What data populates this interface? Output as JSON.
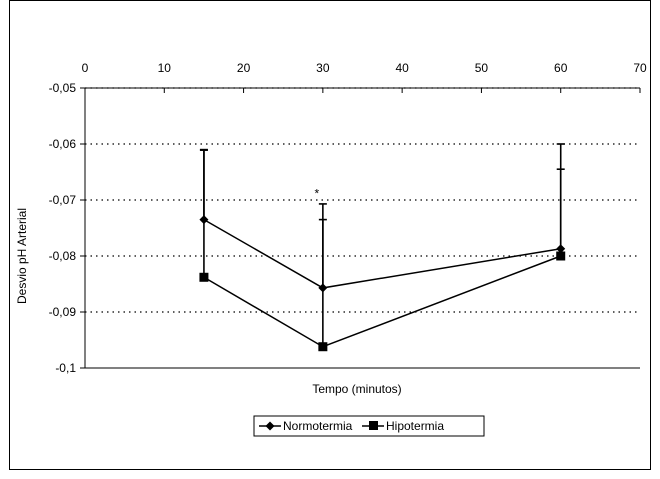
{
  "chart_data": {
    "type": "line",
    "xlabel": "Tempo (minutos)",
    "ylabel": "Desvio pH Arterial",
    "xlim": [
      0,
      70
    ],
    "ylim": [
      -0.1,
      -0.05
    ],
    "x_ticks": [
      "0",
      "10",
      "20",
      "30",
      "40",
      "50",
      "60",
      "70"
    ],
    "y_ticks": [
      "-0,05",
      "-0,06",
      "-0,07",
      "-0,08",
      "-0,09",
      "-0,1"
    ],
    "x_tick_values": [
      0,
      10,
      20,
      30,
      40,
      50,
      60,
      70
    ],
    "y_tick_values": [
      -0.05,
      -0.06,
      -0.07,
      -0.08,
      -0.09,
      -0.1
    ],
    "x_axis_position": "top",
    "grid": "horizontal-dotted",
    "legend_position": "bottom",
    "annotation": "*",
    "annotation_at": {
      "x": 30,
      "y": -0.0685
    },
    "series": [
      {
        "name": "Normotermia",
        "marker": "diamond",
        "x": [
          15,
          30,
          60
        ],
        "y": [
          -0.0735,
          -0.0857,
          -0.0787
        ],
        "error_upper": [
          0.0125,
          0.015,
          0.0187
        ]
      },
      {
        "name": "Hipotermia",
        "marker": "square",
        "x": [
          15,
          30,
          60
        ],
        "y": [
          -0.0838,
          -0.0962,
          -0.08
        ],
        "error_upper": [
          0.0227,
          0.0227,
          0.0155
        ]
      }
    ]
  }
}
